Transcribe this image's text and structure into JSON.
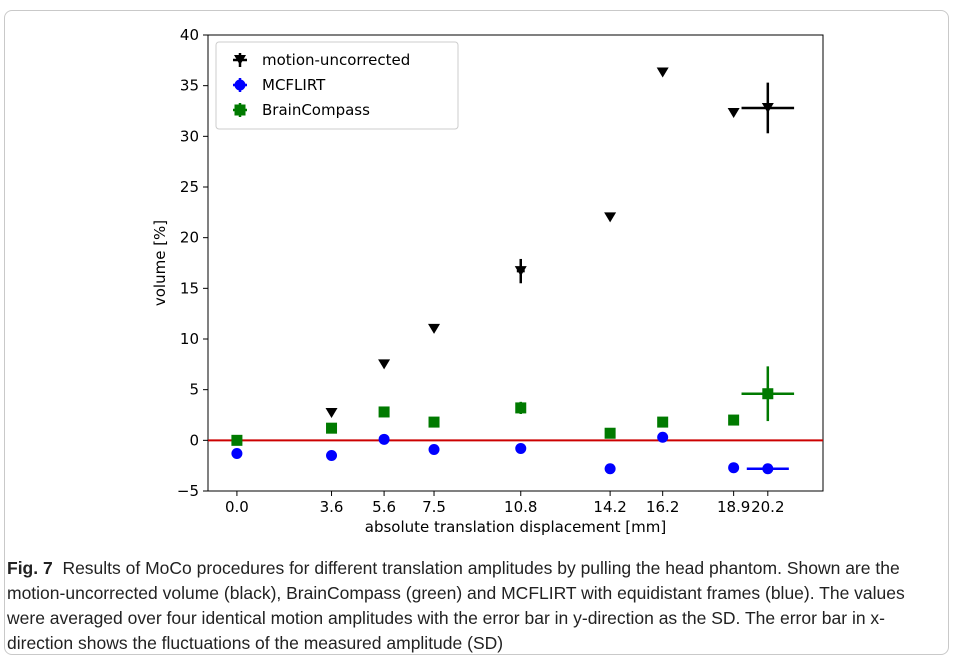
{
  "chart_data": {
    "type": "scatter",
    "xlabel": "absolute translation displacement [mm]",
    "ylabel": "volume [%]",
    "xlim": [
      -1.1,
      22.3
    ],
    "ylim": [
      -5,
      40
    ],
    "xticks": [
      0.0,
      3.6,
      5.6,
      7.5,
      10.8,
      14.2,
      16.2,
      18.9,
      20.2
    ],
    "xtick_labels": [
      "0.0",
      "3.6",
      "5.6",
      "7.5",
      "10.8",
      "14.2",
      "16.2",
      "18.9",
      "20.2"
    ],
    "yticks": [
      -5,
      0,
      5,
      10,
      15,
      20,
      25,
      30,
      35,
      40
    ],
    "ytick_labels": [
      "−5",
      "0",
      "5",
      "10",
      "15",
      "20",
      "25",
      "30",
      "35",
      "40"
    ],
    "grid": false,
    "legend_position": "top-left",
    "reference_line": {
      "y": 0,
      "color": "#cc0000"
    },
    "series": [
      {
        "name": "motion-uncorrected",
        "color": "#000000",
        "marker": "triangle-down",
        "points": [
          {
            "x": 3.6,
            "y": 2.7
          },
          {
            "x": 5.6,
            "y": 7.5
          },
          {
            "x": 7.5,
            "y": 11.0
          },
          {
            "x": 14.2,
            "y": 22.0
          },
          {
            "x": 16.2,
            "y": 36.3
          },
          {
            "x": 18.9,
            "y": 32.3
          }
        ],
        "error_points": [
          {
            "x": 10.8,
            "y": 16.7,
            "xerr": 0.15,
            "yerr": 1.2
          },
          {
            "x": 20.2,
            "y": 32.8,
            "xerr": 1.0,
            "yerr": 2.5
          }
        ]
      },
      {
        "name": "MCFLIRT",
        "color": "#0000ff",
        "marker": "circle",
        "points": [
          {
            "x": 0.0,
            "y": -1.3
          },
          {
            "x": 3.6,
            "y": -1.5
          },
          {
            "x": 5.6,
            "y": 0.1
          },
          {
            "x": 7.5,
            "y": -0.9
          },
          {
            "x": 10.8,
            "y": -0.8
          },
          {
            "x": 14.2,
            "y": -2.8
          },
          {
            "x": 16.2,
            "y": 0.3
          },
          {
            "x": 18.9,
            "y": -2.7
          }
        ],
        "error_points": [
          {
            "x": 20.2,
            "y": -2.8,
            "xerr": 0.8,
            "yerr": 0.05
          }
        ]
      },
      {
        "name": "BrainCompass",
        "color": "#007a00",
        "marker": "square",
        "points": [
          {
            "x": 0.0,
            "y": 0.0
          },
          {
            "x": 3.6,
            "y": 1.2
          },
          {
            "x": 5.6,
            "y": 2.8
          },
          {
            "x": 7.5,
            "y": 1.8
          },
          {
            "x": 14.2,
            "y": 0.7
          },
          {
            "x": 16.2,
            "y": 1.8
          },
          {
            "x": 18.9,
            "y": 2.0
          }
        ],
        "error_points": [
          {
            "x": 10.8,
            "y": 3.2,
            "xerr": 0.15,
            "yerr": 0.6
          },
          {
            "x": 20.2,
            "y": 4.6,
            "xerr": 1.0,
            "yerr": 2.7
          }
        ]
      }
    ]
  },
  "caption": {
    "label": "Fig. 7",
    "text": "Results of MoCo procedures for different translation amplitudes by pulling the head phantom. Shown are the motion-uncorrected volume (black), BrainCompass (green) and MCFLIRT with equidistant frames (blue). The values were averaged over four identical motion amplitudes with the error bar in y-direction as the SD. The error bar in x-direction shows the fluctuations of the measured amplitude (SD)"
  }
}
